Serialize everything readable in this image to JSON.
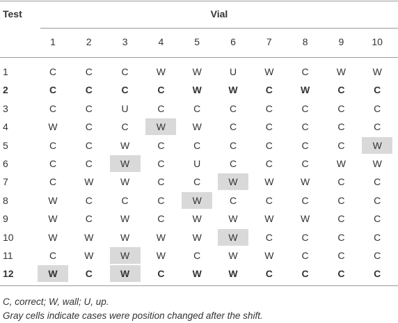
{
  "header": {
    "test": "Test",
    "vial": "Vial",
    "columns": [
      "1",
      "2",
      "3",
      "4",
      "5",
      "6",
      "7",
      "8",
      "9",
      "10"
    ]
  },
  "table": {
    "rows": [
      {
        "label": "1",
        "bold": false,
        "cells": [
          "C",
          "C",
          "C",
          "W",
          "W",
          "U",
          "W",
          "C",
          "W",
          "W"
        ],
        "highlighted": []
      },
      {
        "label": "2",
        "bold": true,
        "cells": [
          "C",
          "C",
          "C",
          "C",
          "W",
          "W",
          "C",
          "W",
          "C",
          "C"
        ],
        "highlighted": []
      },
      {
        "label": "3",
        "bold": false,
        "cells": [
          "C",
          "C",
          "U",
          "C",
          "C",
          "C",
          "C",
          "C",
          "C",
          "C"
        ],
        "highlighted": []
      },
      {
        "label": "4",
        "bold": false,
        "cells": [
          "W",
          "C",
          "C",
          "W",
          "W",
          "C",
          "C",
          "C",
          "C",
          "C"
        ],
        "highlighted": [
          3
        ]
      },
      {
        "label": "5",
        "bold": false,
        "cells": [
          "C",
          "C",
          "W",
          "C",
          "C",
          "C",
          "C",
          "C",
          "C",
          "W"
        ],
        "highlighted": [
          9
        ]
      },
      {
        "label": "6",
        "bold": false,
        "cells": [
          "C",
          "C",
          "W",
          "C",
          "U",
          "C",
          "C",
          "C",
          "W",
          "W"
        ],
        "highlighted": [
          2
        ]
      },
      {
        "label": "7",
        "bold": false,
        "cells": [
          "C",
          "W",
          "W",
          "C",
          "C",
          "W",
          "W",
          "W",
          "C",
          "C"
        ],
        "highlighted": [
          5
        ]
      },
      {
        "label": "8",
        "bold": false,
        "cells": [
          "W",
          "C",
          "C",
          "C",
          "W",
          "C",
          "C",
          "C",
          "C",
          "C"
        ],
        "highlighted": [
          4
        ]
      },
      {
        "label": "9",
        "bold": false,
        "cells": [
          "W",
          "C",
          "W",
          "C",
          "W",
          "W",
          "W",
          "W",
          "C",
          "C"
        ],
        "highlighted": []
      },
      {
        "label": "10",
        "bold": false,
        "cells": [
          "W",
          "W",
          "W",
          "W",
          "W",
          "W",
          "C",
          "C",
          "C",
          "C"
        ],
        "highlighted": [
          5
        ]
      },
      {
        "label": "11",
        "bold": false,
        "cells": [
          "C",
          "W",
          "W",
          "W",
          "C",
          "W",
          "W",
          "C",
          "C",
          "C"
        ],
        "highlighted": [
          2
        ]
      },
      {
        "label": "12",
        "bold": true,
        "cells": [
          "W",
          "C",
          "W",
          "C",
          "W",
          "W",
          "C",
          "C",
          "C",
          "C"
        ],
        "highlighted": [
          0,
          2
        ]
      }
    ]
  },
  "footnotes": [
    "C, correct; W, wall; U, up.",
    "Gray cells indicate cases were position changed after the shift."
  ]
}
